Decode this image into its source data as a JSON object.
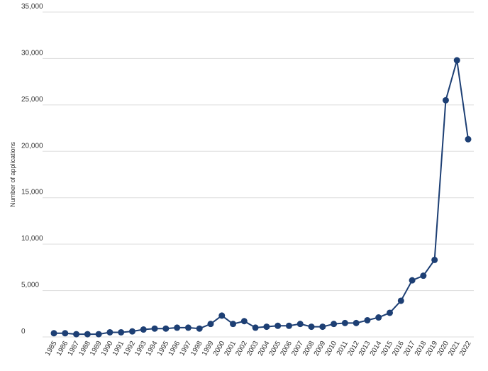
{
  "chart_data": {
    "type": "line",
    "y_label": "Number of applications",
    "categories": [
      "1985",
      "1986",
      "1987",
      "1988",
      "1989",
      "1990",
      "1991",
      "1992",
      "1993",
      "1994",
      "1995",
      "1996",
      "1997",
      "1998",
      "1999",
      "2000",
      "2001",
      "2002",
      "2003",
      "2004",
      "2005",
      "2006",
      "2007",
      "2008",
      "2009",
      "2010",
      "2011",
      "2012",
      "2013",
      "2014",
      "2015",
      "2016",
      "2017",
      "2018",
      "2019",
      "2020",
      "2021",
      "2022"
    ],
    "values": [
      400,
      400,
      300,
      300,
      300,
      500,
      500,
      600,
      800,
      900,
      900,
      1000,
      1000,
      900,
      1400,
      2300,
      1400,
      1700,
      1000,
      1100,
      1200,
      1200,
      1400,
      1100,
      1100,
      1400,
      1500,
      1500,
      1800,
      2100,
      2600,
      3900,
      6100,
      6600,
      8300,
      25500,
      29800,
      21300
    ],
    "color": "#1d3f74",
    "ylim": [
      0,
      35000
    ],
    "yticks": [
      0,
      {
        "value": 5000,
        "label": "5,000"
      },
      {
        "value": 10000,
        "label": "10,000"
      },
      {
        "value": 15000,
        "label": "15,000"
      },
      {
        "value": 20000,
        "label": "20,000"
      },
      {
        "value": 25000,
        "label": "25,000"
      },
      {
        "value": 30000,
        "label": "30,000"
      },
      {
        "value": 35000,
        "label": "35,000"
      }
    ],
    "grid": true
  }
}
